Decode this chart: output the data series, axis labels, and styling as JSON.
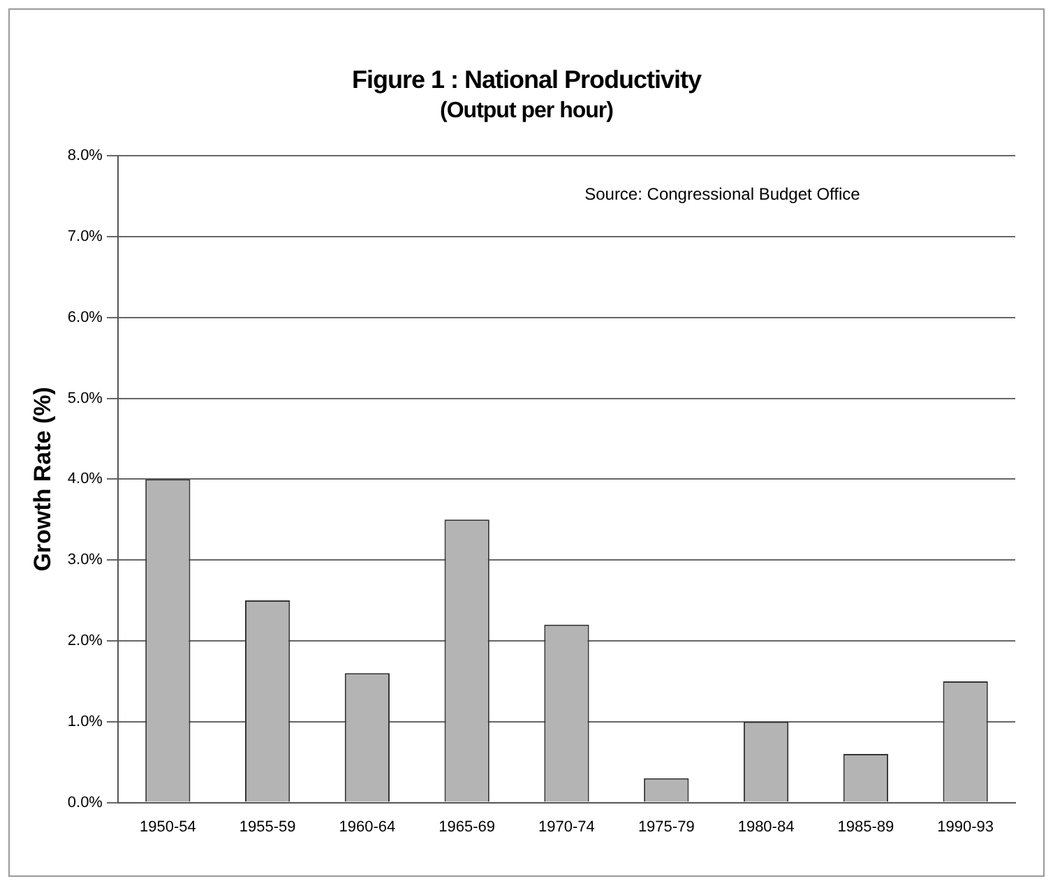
{
  "chart_data": {
    "type": "bar",
    "title": "Figure 1 : National Productivity",
    "subtitle": "(Output per hour)",
    "ylabel": "Growth Rate (%)",
    "categories": [
      "1950-54",
      "1955-59",
      "1960-64",
      "1965-69",
      "1970-74",
      "1975-79",
      "1980-84",
      "1985-89",
      "1990-93"
    ],
    "values": [
      4.0,
      2.5,
      1.6,
      3.5,
      2.2,
      0.3,
      1.0,
      0.6,
      1.5
    ],
    "color": "#b4b4b4",
    "ylim": [
      0,
      8
    ],
    "yticks": [
      {
        "value": 0,
        "label": "0.0%"
      },
      {
        "value": 1,
        "label": "1.0%"
      },
      {
        "value": 2,
        "label": "2.0%"
      },
      {
        "value": 3,
        "label": "3.0%"
      },
      {
        "value": 4,
        "label": "4.0%"
      },
      {
        "value": 5,
        "label": "5.0%"
      },
      {
        "value": 6,
        "label": "6.0%"
      },
      {
        "value": 7,
        "label": "7.0%"
      },
      {
        "value": 8,
        "label": "8.0%"
      }
    ],
    "grid": "y",
    "legend": false,
    "annotations": [
      "Source: Congressional Budget Office"
    ]
  }
}
